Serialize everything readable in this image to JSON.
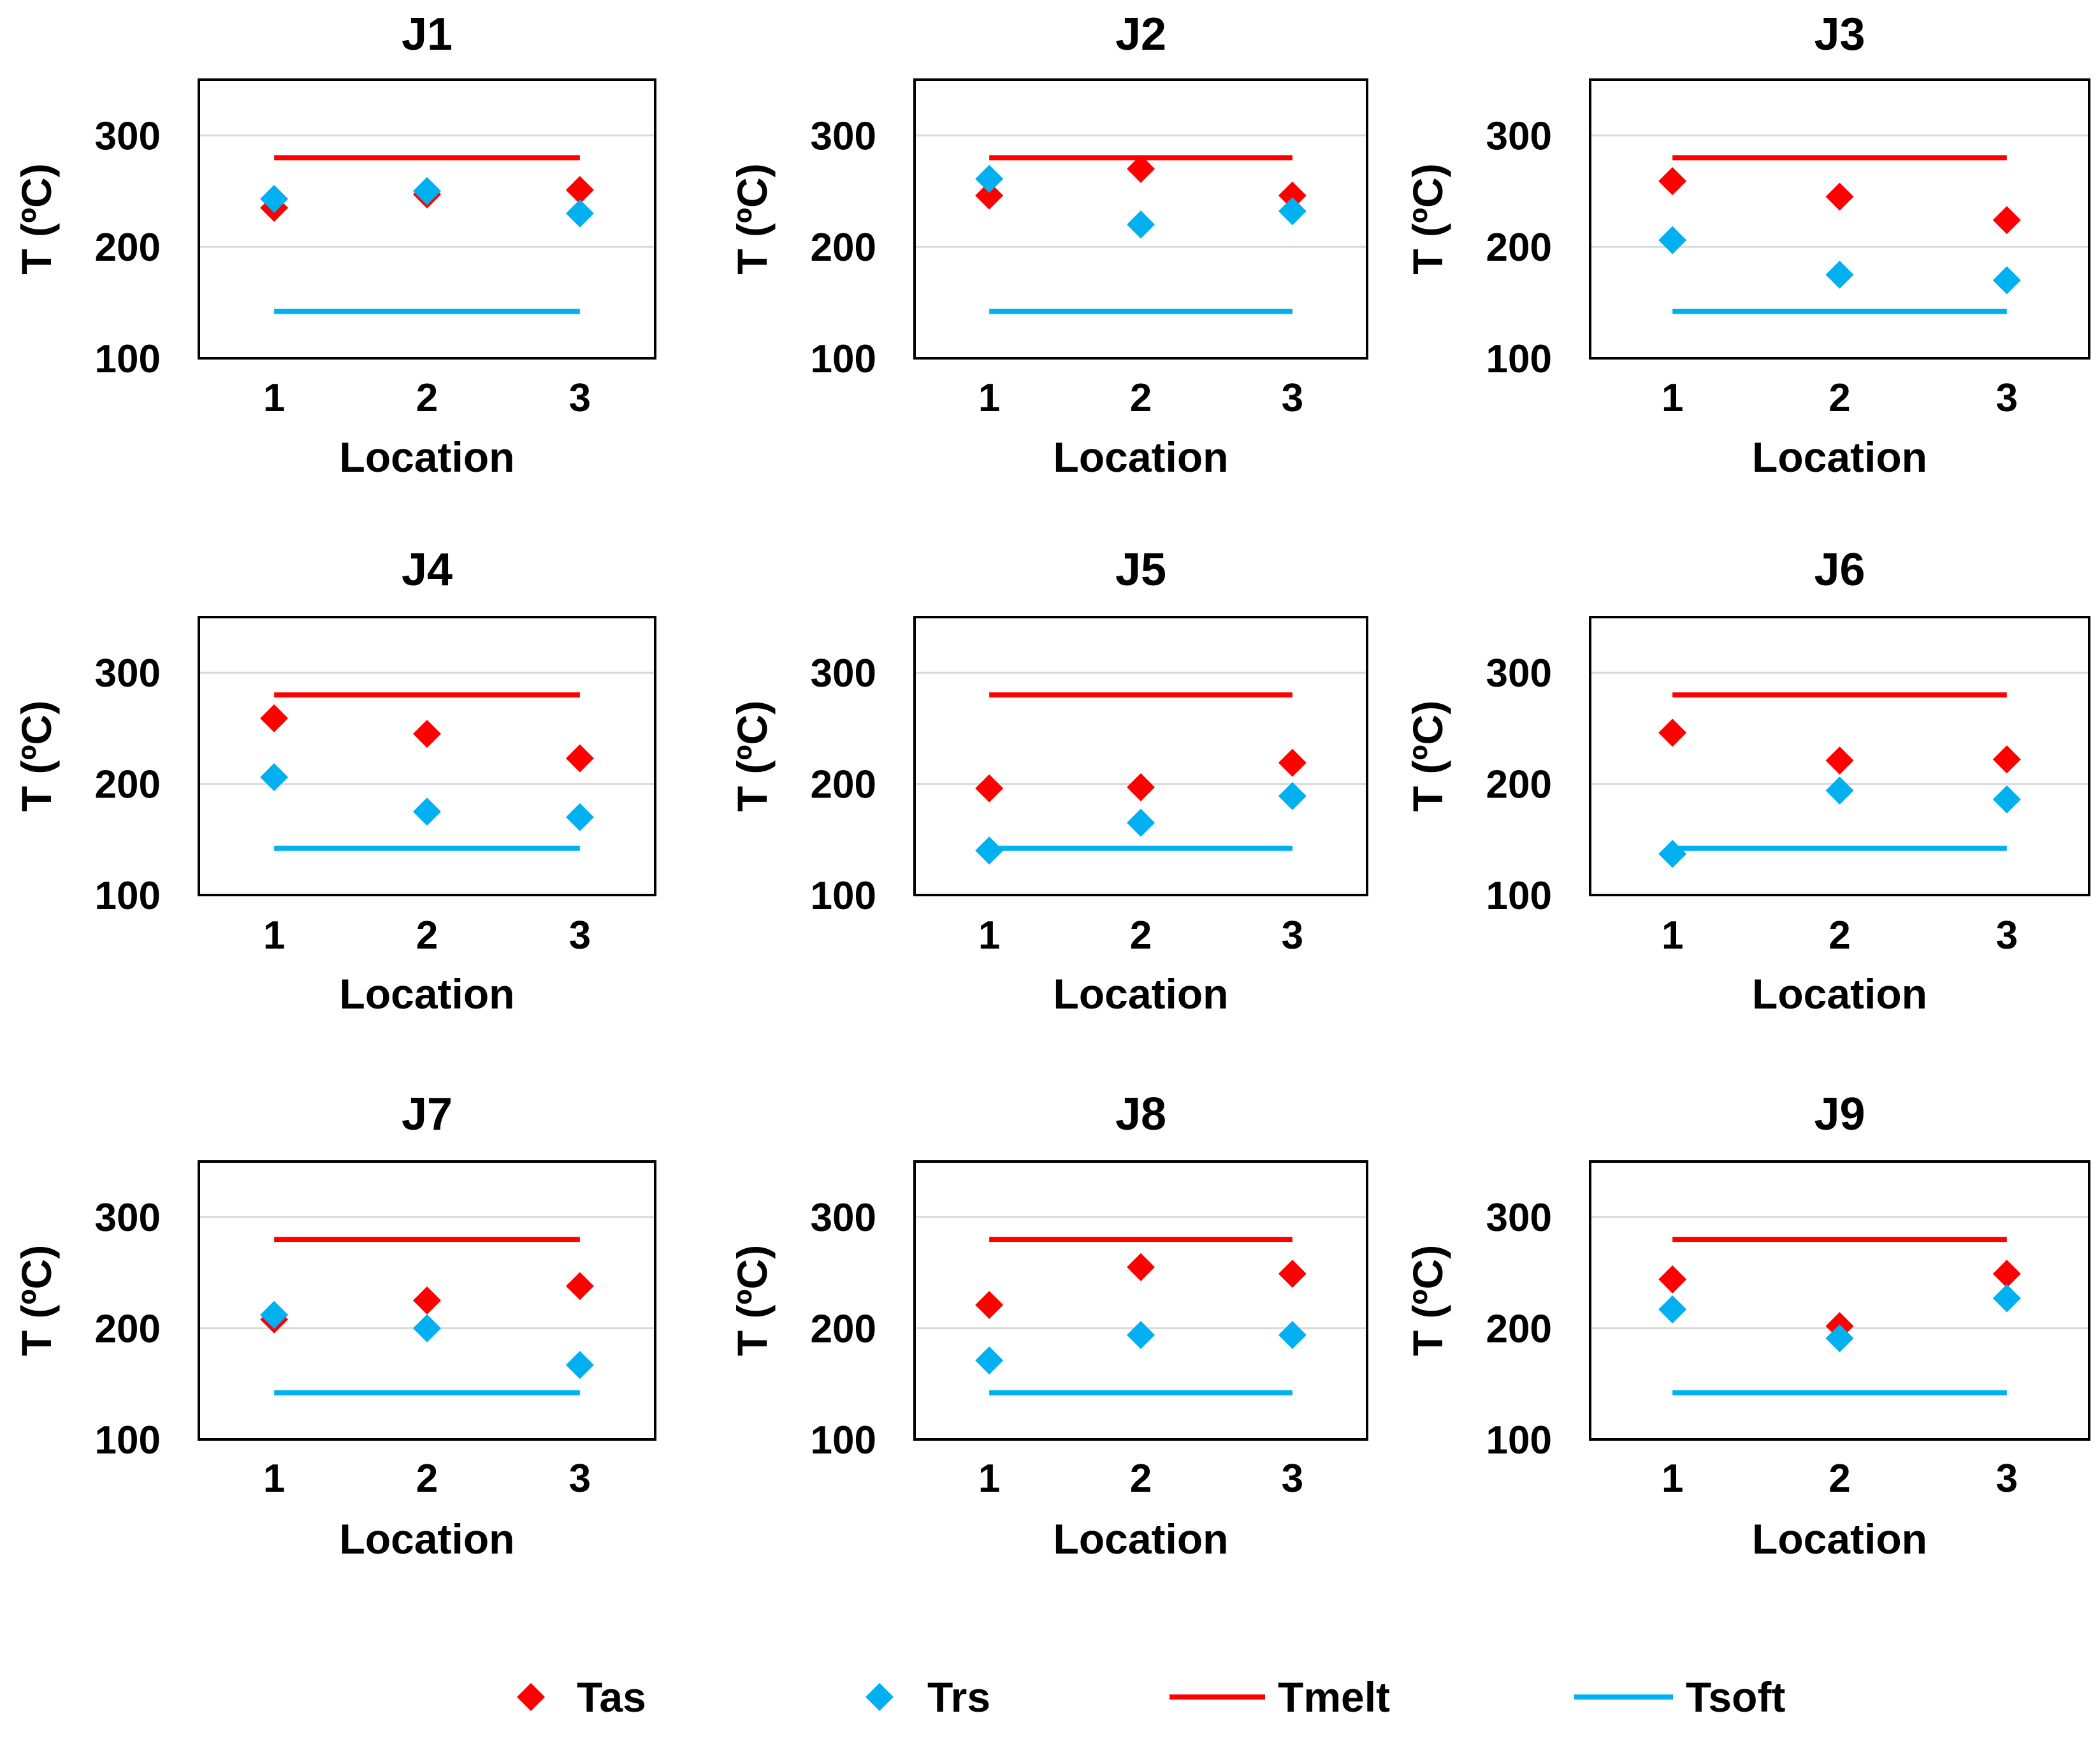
{
  "figure": {
    "legend_position": "bottom"
  },
  "chart_data": [
    {
      "type": "scatter",
      "title": "J1",
      "xlabel": "Location",
      "ylabel": "T (ºC)",
      "categories": [
        "1",
        "2",
        "3"
      ],
      "ylim": [
        100,
        350
      ],
      "yticks": [
        "100",
        "200",
        "300"
      ],
      "series": [
        {
          "name": "Tas",
          "marker": "diamond",
          "color": "#ff0000",
          "values": [
            235,
            247,
            251
          ]
        },
        {
          "name": "Trs",
          "marker": "diamond",
          "color": "#00b0f0",
          "values": [
            243,
            250,
            230
          ]
        },
        {
          "name": "Tmelt",
          "line": true,
          "color": "#ff0000",
          "values": [
            280,
            280,
            280
          ]
        },
        {
          "name": "Tsoft",
          "line": true,
          "color": "#00b0f0",
          "values": [
            142,
            142,
            142
          ]
        }
      ]
    },
    {
      "type": "scatter",
      "title": "J2",
      "xlabel": "Location",
      "ylabel": "T (ºC)",
      "categories": [
        "1",
        "2",
        "3"
      ],
      "ylim": [
        100,
        350
      ],
      "yticks": [
        "100",
        "200",
        "300"
      ],
      "series": [
        {
          "name": "Tas",
          "marker": "diamond",
          "color": "#ff0000",
          "values": [
            246,
            270,
            246
          ]
        },
        {
          "name": "Trs",
          "marker": "diamond",
          "color": "#00b0f0",
          "values": [
            261,
            220,
            232
          ]
        },
        {
          "name": "Tmelt",
          "line": true,
          "color": "#ff0000",
          "values": [
            280,
            280,
            280
          ]
        },
        {
          "name": "Tsoft",
          "line": true,
          "color": "#00b0f0",
          "values": [
            142,
            142,
            142
          ]
        }
      ]
    },
    {
      "type": "scatter",
      "title": "J3",
      "xlabel": "Location",
      "ylabel": "T (ºC)",
      "categories": [
        "1",
        "2",
        "3"
      ],
      "ylim": [
        100,
        350
      ],
      "yticks": [
        "100",
        "200",
        "300"
      ],
      "series": [
        {
          "name": "Tas",
          "marker": "diamond",
          "color": "#ff0000",
          "values": [
            259,
            245,
            224
          ]
        },
        {
          "name": "Trs",
          "marker": "diamond",
          "color": "#00b0f0",
          "values": [
            206,
            175,
            170
          ]
        },
        {
          "name": "Tmelt",
          "line": true,
          "color": "#ff0000",
          "values": [
            280,
            280,
            280
          ]
        },
        {
          "name": "Tsoft",
          "line": true,
          "color": "#00b0f0",
          "values": [
            142,
            142,
            142
          ]
        }
      ]
    },
    {
      "type": "scatter",
      "title": "J4",
      "xlabel": "Location",
      "ylabel": "T (ºC)",
      "categories": [
        "1",
        "2",
        "3"
      ],
      "ylim": [
        100,
        350
      ],
      "yticks": [
        "100",
        "200",
        "300"
      ],
      "series": [
        {
          "name": "Tas",
          "marker": "diamond",
          "color": "#ff0000",
          "values": [
            259,
            245,
            223
          ]
        },
        {
          "name": "Trs",
          "marker": "diamond",
          "color": "#00b0f0",
          "values": [
            206,
            175,
            170
          ]
        },
        {
          "name": "Tmelt",
          "line": true,
          "color": "#ff0000",
          "values": [
            280,
            280,
            280
          ]
        },
        {
          "name": "Tsoft",
          "line": true,
          "color": "#00b0f0",
          "values": [
            142,
            142,
            142
          ]
        }
      ]
    },
    {
      "type": "scatter",
      "title": "J5",
      "xlabel": "Location",
      "ylabel": "T (ºC)",
      "categories": [
        "1",
        "2",
        "3"
      ],
      "ylim": [
        100,
        350
      ],
      "yticks": [
        "100",
        "200",
        "300"
      ],
      "series": [
        {
          "name": "Tas",
          "marker": "diamond",
          "color": "#ff0000",
          "values": [
            196,
            197,
            219
          ]
        },
        {
          "name": "Trs",
          "marker": "diamond",
          "color": "#00b0f0",
          "values": [
            140,
            165,
            189
          ]
        },
        {
          "name": "Tmelt",
          "line": true,
          "color": "#ff0000",
          "values": [
            280,
            280,
            280
          ]
        },
        {
          "name": "Tsoft",
          "line": true,
          "color": "#00b0f0",
          "values": [
            142,
            142,
            142
          ]
        }
      ]
    },
    {
      "type": "scatter",
      "title": "J6",
      "xlabel": "Location",
      "ylabel": "T (ºC)",
      "categories": [
        "1",
        "2",
        "3"
      ],
      "ylim": [
        100,
        350
      ],
      "yticks": [
        "100",
        "200",
        "300"
      ],
      "series": [
        {
          "name": "Tas",
          "marker": "diamond",
          "color": "#ff0000",
          "values": [
            246,
            221,
            222
          ]
        },
        {
          "name": "Trs",
          "marker": "diamond",
          "color": "#00b0f0",
          "values": [
            137,
            194,
            186
          ]
        },
        {
          "name": "Tmelt",
          "line": true,
          "color": "#ff0000",
          "values": [
            280,
            280,
            280
          ]
        },
        {
          "name": "Tsoft",
          "line": true,
          "color": "#00b0f0",
          "values": [
            142,
            142,
            142
          ]
        }
      ]
    },
    {
      "type": "scatter",
      "title": "J7",
      "xlabel": "Location",
      "ylabel": "T (ºC)",
      "categories": [
        "1",
        "2",
        "3"
      ],
      "ylim": [
        100,
        350
      ],
      "yticks": [
        "100",
        "200",
        "300"
      ],
      "series": [
        {
          "name": "Tas",
          "marker": "diamond",
          "color": "#ff0000",
          "values": [
            208,
            225,
            238
          ]
        },
        {
          "name": "Trs",
          "marker": "diamond",
          "color": "#00b0f0",
          "values": [
            212,
            200,
            167
          ]
        },
        {
          "name": "Tmelt",
          "line": true,
          "color": "#ff0000",
          "values": [
            280,
            280,
            280
          ]
        },
        {
          "name": "Tsoft",
          "line": true,
          "color": "#00b0f0",
          "values": [
            142,
            142,
            142
          ]
        }
      ]
    },
    {
      "type": "scatter",
      "title": "J8",
      "xlabel": "Location",
      "ylabel": "T (ºC)",
      "categories": [
        "1",
        "2",
        "3"
      ],
      "ylim": [
        100,
        350
      ],
      "yticks": [
        "100",
        "200",
        "300"
      ],
      "series": [
        {
          "name": "Tas",
          "marker": "diamond",
          "color": "#ff0000",
          "values": [
            221,
            255,
            249
          ]
        },
        {
          "name": "Trs",
          "marker": "diamond",
          "color": "#00b0f0",
          "values": [
            171,
            194,
            194
          ]
        },
        {
          "name": "Tmelt",
          "line": true,
          "color": "#ff0000",
          "values": [
            280,
            280,
            280
          ]
        },
        {
          "name": "Tsoft",
          "line": true,
          "color": "#00b0f0",
          "values": [
            142,
            142,
            142
          ]
        }
      ]
    },
    {
      "type": "scatter",
      "title": "J9",
      "xlabel": "Location",
      "ylabel": "T (ºC)",
      "categories": [
        "1",
        "2",
        "3"
      ],
      "ylim": [
        100,
        350
      ],
      "yticks": [
        "100",
        "200",
        "300"
      ],
      "series": [
        {
          "name": "Tas",
          "marker": "diamond",
          "color": "#ff0000",
          "values": [
            244,
            202,
            249
          ]
        },
        {
          "name": "Trs",
          "marker": "diamond",
          "color": "#00b0f0",
          "values": [
            217,
            191,
            227
          ]
        },
        {
          "name": "Tmelt",
          "line": true,
          "color": "#ff0000",
          "values": [
            280,
            280,
            280
          ]
        },
        {
          "name": "Tsoft",
          "line": true,
          "color": "#00b0f0",
          "values": [
            142,
            142,
            142
          ]
        }
      ]
    }
  ],
  "legend": [
    {
      "name": "Tas",
      "symbol": "diamond",
      "color": "#ff0000"
    },
    {
      "name": "Trs",
      "symbol": "diamond",
      "color": "#00b0f0"
    },
    {
      "name": "Tmelt",
      "symbol": "line",
      "color": "#ff0000"
    },
    {
      "name": "Tsoft",
      "symbol": "line",
      "color": "#00b0f0"
    }
  ]
}
